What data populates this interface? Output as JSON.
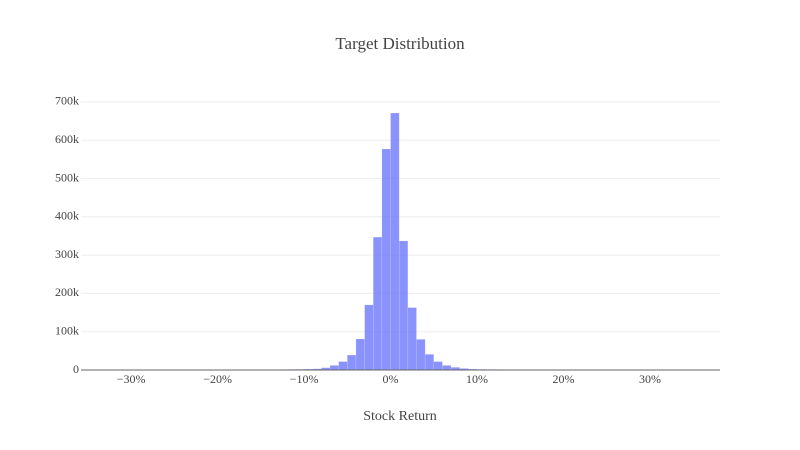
{
  "chart_data": {
    "type": "histogram",
    "title": "Target Distribution",
    "x_label": "Stock Return",
    "bins": [
      -35,
      -34,
      -33,
      -32,
      -31,
      -30,
      -29,
      -28,
      -27,
      -26,
      -25,
      -24,
      -23,
      -22,
      -21,
      -20,
      -19,
      -18,
      -17,
      -16,
      -15,
      -14,
      -13,
      -12,
      -11,
      -10,
      -9,
      -8,
      -7,
      -6,
      -5,
      -4,
      -3,
      -2,
      -1,
      0,
      1,
      2,
      3,
      4,
      5,
      6,
      7,
      8,
      9,
      10,
      11,
      12,
      13,
      14,
      15,
      16,
      17,
      18,
      19,
      20,
      21,
      22,
      23,
      24,
      25,
      26,
      27,
      28,
      29,
      30,
      31,
      32,
      33,
      34,
      35,
      36,
      37,
      38
    ],
    "values": [
      300,
      300,
      300,
      300,
      300,
      400,
      400,
      400,
      400,
      500,
      500,
      500,
      600,
      600,
      700,
      700,
      800,
      900,
      1000,
      1100,
      1200,
      1300,
      1500,
      1700,
      2000,
      2500,
      3000,
      6000,
      12000,
      22000,
      39000,
      81000,
      170000,
      347000,
      577000,
      671000,
      337000,
      163000,
      80000,
      41000,
      22000,
      12000,
      7000,
      4000,
      2500,
      2000,
      1700,
      1500,
      1300,
      1200,
      1100,
      1000,
      900,
      800,
      700,
      700,
      600,
      600,
      500,
      500,
      500,
      400,
      400,
      400,
      400,
      300,
      300,
      300,
      300,
      300,
      300,
      300,
      300
    ],
    "color": "#636efa",
    "opacity": 0.75,
    "xlim": [
      -35.8,
      38.1
    ],
    "xticks": [
      {
        "value": -30,
        "label": "−30%"
      },
      {
        "value": -20,
        "label": "−20%"
      },
      {
        "value": -10,
        "label": "−10%"
      },
      {
        "value": 0,
        "label": "0%"
      },
      {
        "value": 10,
        "label": "10%"
      },
      {
        "value": 20,
        "label": "20%"
      },
      {
        "value": 30,
        "label": "30%"
      }
    ],
    "ylim": [
      0,
      705000
    ],
    "yticks": [
      0,
      {
        "value": 100000,
        "label": "100k"
      },
      {
        "value": 200000,
        "label": "200k"
      },
      {
        "value": 300000,
        "label": "300k"
      },
      {
        "value": 400000,
        "label": "400k"
      },
      {
        "value": 500000,
        "label": "500k"
      },
      {
        "value": 600000,
        "label": "600k"
      },
      {
        "value": 700000,
        "label": "700k"
      }
    ],
    "grid": true
  }
}
